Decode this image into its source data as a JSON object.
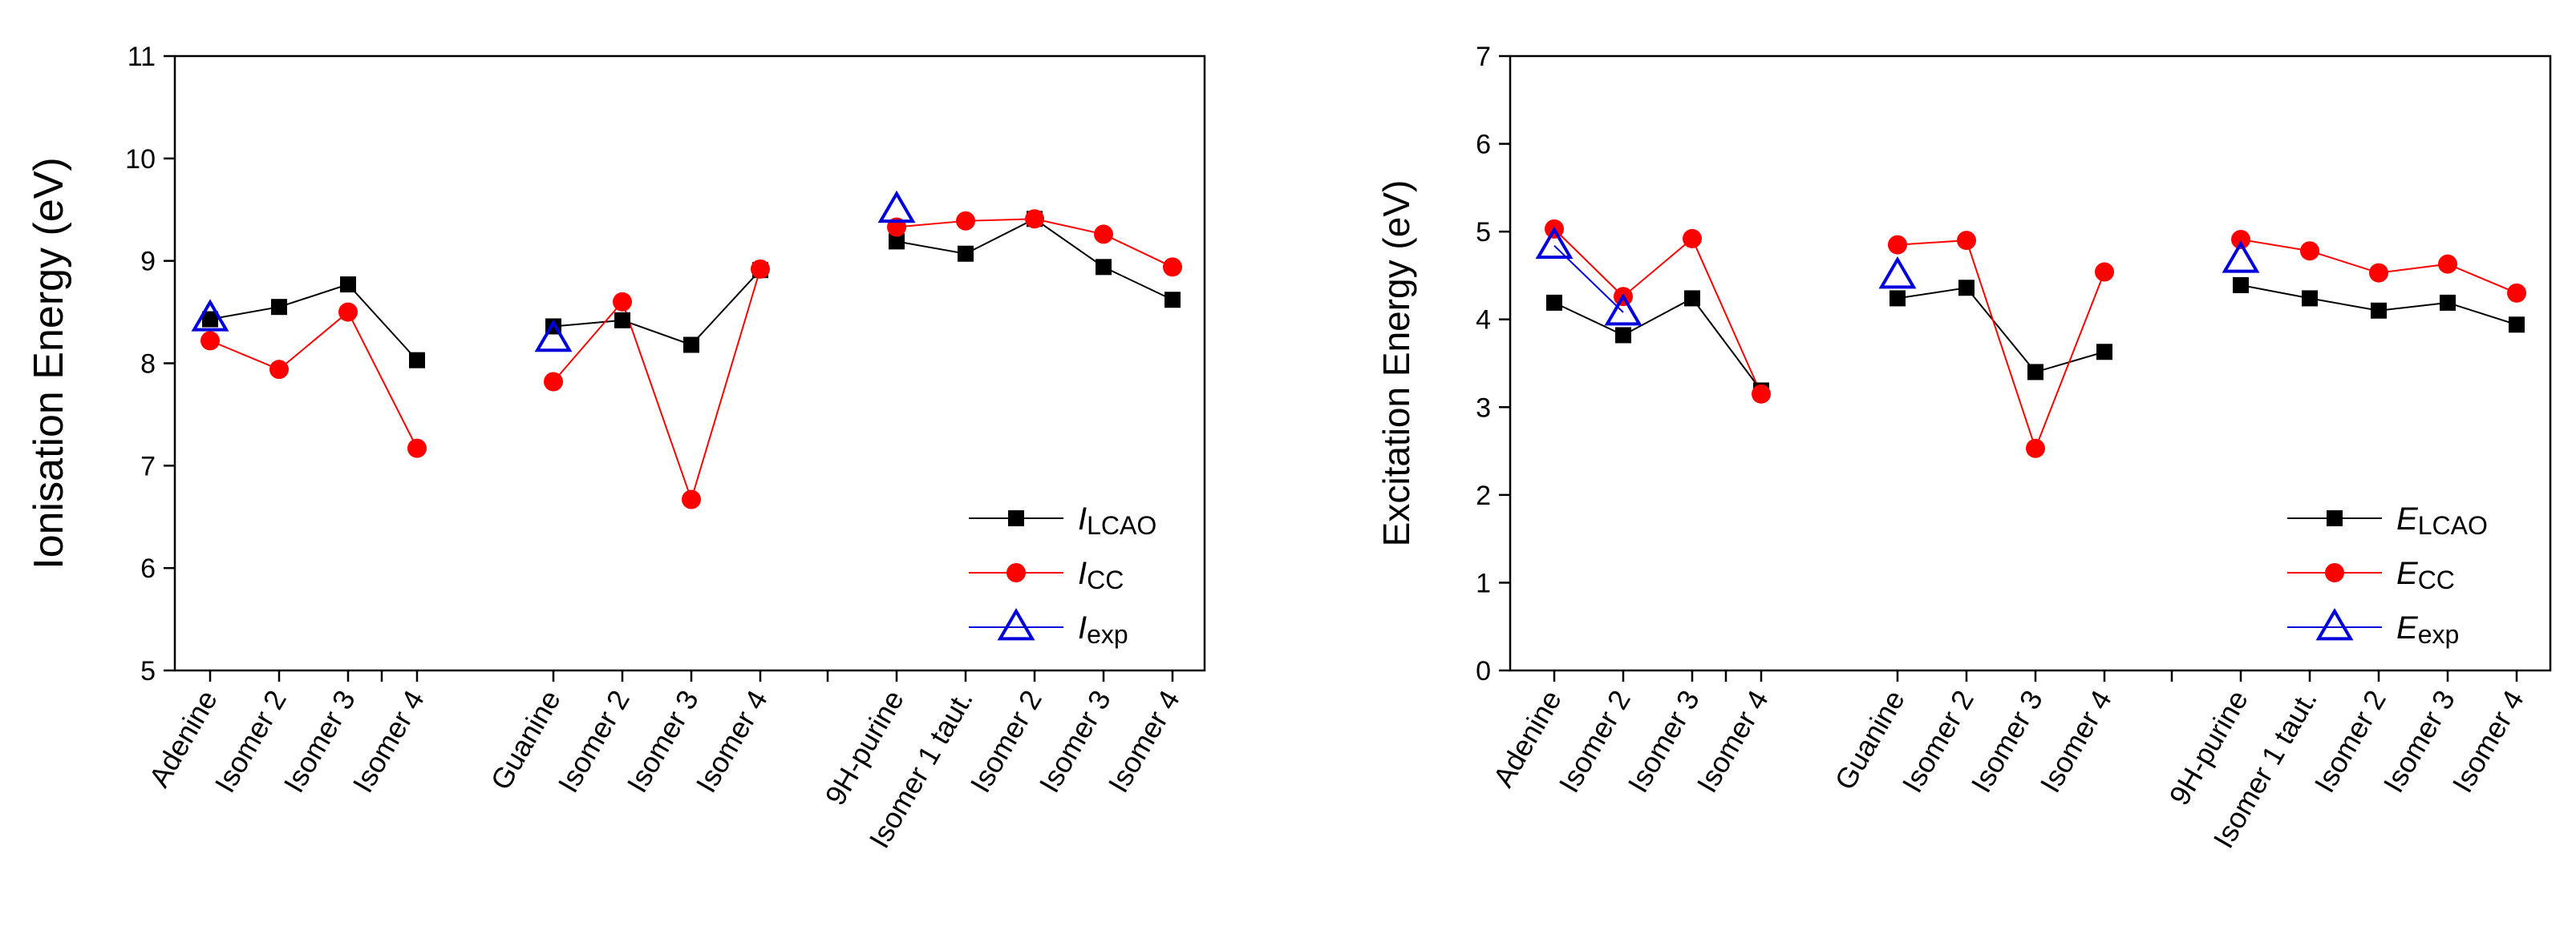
{
  "chart_data": [
    {
      "type": "line",
      "ylabel": "Ionisation Energy (eV)",
      "ylim": [
        5,
        11
      ],
      "yticks": [
        5,
        6,
        7,
        8,
        9,
        10,
        11
      ],
      "groups": [
        {
          "categories": [
            "Adenine",
            "Isomer 2",
            "Isomer 3",
            "Isomer 4"
          ]
        },
        {
          "categories": [
            "Guanine",
            "Isomer 2",
            "Isomer 3",
            "Isomer 4"
          ]
        },
        {
          "categories": [
            "9H-purine",
            "Isomer 1 taut.",
            "Isomer 2",
            "Isomer 3",
            "Isomer 4"
          ]
        }
      ],
      "series": [
        {
          "name": "LCAO",
          "symbol": "I",
          "sub": "LCAO",
          "color": "#000000",
          "marker": "square",
          "groups": [
            [
              8.43,
              8.55,
              8.77,
              8.03
            ],
            [
              8.36,
              8.42,
              8.18,
              8.91
            ],
            [
              9.19,
              9.07,
              9.41,
              8.94,
              8.62
            ]
          ]
        },
        {
          "name": "CC",
          "symbol": "I",
          "sub": "CC",
          "color": "#ff0000",
          "marker": "circle",
          "groups": [
            [
              8.22,
              7.94,
              8.5,
              7.17
            ],
            [
              7.82,
              8.6,
              6.67,
              8.92
            ],
            [
              9.33,
              9.39,
              9.41,
              9.26,
              8.94
            ]
          ]
        },
        {
          "name": "exp",
          "symbol": "I",
          "sub": "exp",
          "color": "#0000dd",
          "marker": "triangle",
          "groups": [
            [
              8.44,
              null,
              null,
              null
            ],
            [
              8.24,
              null,
              null,
              null
            ],
            [
              9.5,
              null,
              null,
              null,
              null
            ]
          ]
        }
      ],
      "legend": "bottom-right"
    },
    {
      "type": "line",
      "ylabel": "Excitation Energy (eV)",
      "ylim": [
        0,
        7
      ],
      "yticks": [
        0,
        1,
        2,
        3,
        4,
        5,
        6,
        7
      ],
      "groups": [
        {
          "categories": [
            "Adenine",
            "Isomer 2",
            "Isomer 3",
            "Isomer 4"
          ]
        },
        {
          "categories": [
            "Guanine",
            "Isomer 2",
            "Isomer 3",
            "Isomer 4"
          ]
        },
        {
          "categories": [
            "9H-purine",
            "Isomer 1 taut.",
            "Isomer 2",
            "Isomer 3",
            "Isomer 4"
          ]
        }
      ],
      "series": [
        {
          "name": "LCAO",
          "symbol": "E",
          "sub": "LCAO",
          "color": "#000000",
          "marker": "square",
          "groups": [
            [
              4.19,
              3.82,
              4.24,
              3.19
            ],
            [
              4.24,
              4.36,
              3.4,
              3.63
            ],
            [
              4.39,
              4.24,
              4.1,
              4.19,
              3.94
            ]
          ]
        },
        {
          "name": "CC",
          "symbol": "E",
          "sub": "CC",
          "color": "#ff0000",
          "marker": "circle",
          "groups": [
            [
              5.03,
              4.26,
              4.92,
              3.15
            ],
            [
              4.85,
              4.9,
              2.53,
              4.54
            ],
            [
              4.91,
              4.78,
              4.53,
              4.63,
              4.3
            ]
          ]
        },
        {
          "name": "exp",
          "symbol": "E",
          "sub": "exp",
          "color": "#0000dd",
          "marker": "triangle",
          "groups": [
            [
              4.84,
              4.08,
              null,
              null
            ],
            [
              4.5,
              null,
              null,
              null
            ],
            [
              4.68,
              null,
              null,
              null,
              null
            ]
          ]
        }
      ],
      "legend": "bottom-right"
    }
  ]
}
